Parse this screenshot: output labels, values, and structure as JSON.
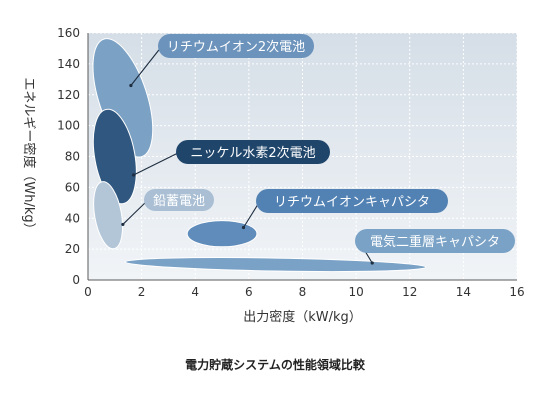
{
  "chart_data": {
    "type": "scatter",
    "xlabel": "出力密度（kW/kg）",
    "ylabel": "エネルギー密度（Wh/kg）",
    "xlim": [
      0,
      16
    ],
    "ylim": [
      0,
      160
    ],
    "xticks": [
      0,
      2,
      4,
      6,
      8,
      10,
      12,
      14,
      16
    ],
    "yticks": [
      0,
      20,
      40,
      60,
      80,
      100,
      120,
      140,
      160
    ],
    "grid": true,
    "caption": "電力貯蔵システムの性能領域比較",
    "series": [
      {
        "name": "リチウムイオン2次電池",
        "cx": 1.3,
        "cy": 118,
        "rx": 0.9,
        "ry": 40,
        "angle": 18,
        "color": "#7ba1c4",
        "label_color": "#6c93bc",
        "pointer": [
          1.6,
          126
        ]
      },
      {
        "name": "ニッケル水素2次電池",
        "cx": 1.0,
        "cy": 80,
        "rx": 0.75,
        "ry": 31,
        "angle": 10,
        "color": "#2f577f",
        "label_color": "#1f456b",
        "pointer": [
          1.7,
          68
        ]
      },
      {
        "name": "鉛蓄電池",
        "cx": 0.75,
        "cy": 42,
        "rx": 0.5,
        "ry": 22,
        "angle": 10,
        "color": "#b3c6d8",
        "label_color": "#aabfd4",
        "pointer": [
          1.3,
          36
        ]
      },
      {
        "name": "リチウムイオンキャパシタ",
        "cx": 5.0,
        "cy": 30,
        "rx": 1.3,
        "ry": 8.5,
        "angle": 0,
        "color": "#5f8cba",
        "label_color": "#5282b4",
        "pointer": [
          5.8,
          34
        ]
      },
      {
        "name": "電気二重層キャパシタ",
        "cx": 7.0,
        "cy": 10,
        "rx": 5.6,
        "ry": 4.2,
        "angle": -1,
        "color": "#7aa2c6",
        "label_color": "#7aa2c6",
        "pointer": [
          10.6,
          11
        ]
      }
    ]
  }
}
